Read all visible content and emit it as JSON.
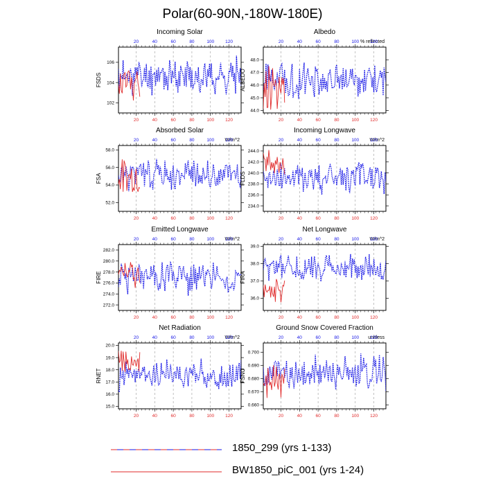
{
  "title": "Polar(60-90N,-180W-180E)",
  "colors": {
    "series_a": "#1515e6",
    "series_b": "#e02a2a",
    "top_axis": "#1515e6",
    "bottom_axis": "#e02a2a",
    "grid": "#999999"
  },
  "legend": {
    "items": [
      {
        "label": "1850_299 (yrs 1-133)",
        "style": "dashed"
      },
      {
        "label": "BW1850_piC_001 (yrs 1-24)",
        "style": "solid"
      }
    ]
  },
  "chart_data": [
    {
      "type": "line",
      "title": "Incoming Solar",
      "ylabel": "FSDS",
      "units": "",
      "ylim": [
        101,
        107.5
      ],
      "yticks": [
        102,
        104,
        106
      ],
      "ytick_labels": [
        "102",
        "104",
        "106"
      ],
      "x_top_ticks": [
        20,
        40,
        60,
        80,
        100,
        120
      ],
      "x_bottom_ticks": [
        20,
        40,
        60,
        80,
        100,
        120
      ],
      "xlim": [
        1,
        133
      ],
      "series": [
        {
          "name": "1850_299 (yrs 1-133)",
          "count": 133,
          "base": 104.6,
          "amp": 1.3,
          "seed": 11
        },
        {
          "name": "BW1850_piC_001 (yrs 1-24)",
          "count": 24,
          "base": 103.8,
          "amp": 1.2,
          "seed": 12
        }
      ]
    },
    {
      "type": "line",
      "title": "Albedo",
      "ylabel": "ALBEDO",
      "units": "% reflected",
      "ylim": [
        43.8,
        49
      ],
      "yticks": [
        44.0,
        45.0,
        46.0,
        47.0,
        48.0
      ],
      "ytick_labels": [
        "44.0",
        "45.0",
        "46.0",
        "47.0",
        "48.0"
      ],
      "x_top_ticks": [
        20,
        40,
        60,
        80,
        100,
        120
      ],
      "x_bottom_ticks": [
        20,
        40,
        60,
        80,
        100,
        120
      ],
      "xlim": [
        1,
        133
      ],
      "series": [
        {
          "name": "1850_299 (yrs 1-133)",
          "count": 133,
          "base": 46.4,
          "amp": 1.0,
          "seed": 21
        },
        {
          "name": "BW1850_piC_001 (yrs 1-24)",
          "count": 24,
          "base": 46.0,
          "amp": 1.4,
          "seed": 22
        }
      ]
    },
    {
      "type": "line",
      "title": "Absorbed Solar",
      "ylabel": "FSA",
      "units": "W/m^2",
      "ylim": [
        51,
        58.5
      ],
      "yticks": [
        52.0,
        54.0,
        56.0,
        58.0
      ],
      "ytick_labels": [
        "52.0",
        "54.0",
        "56.0",
        "58.0"
      ],
      "x_top_ticks": [
        20,
        40,
        60,
        80,
        100,
        120
      ],
      "x_bottom_ticks": [
        20,
        40,
        60,
        80,
        100,
        120
      ],
      "xlim": [
        1,
        133
      ],
      "series": [
        {
          "name": "1850_299 (yrs 1-133)",
          "count": 133,
          "base": 55.2,
          "amp": 1.3,
          "seed": 31
        },
        {
          "name": "BW1850_piC_001 (yrs 1-24)",
          "count": 24,
          "base": 55.0,
          "amp": 1.4,
          "seed": 32
        }
      ]
    },
    {
      "type": "line",
      "title": "Incoming Longwave",
      "ylabel": "FLDS",
      "units": "W/m^2",
      "ylim": [
        233,
        245
      ],
      "yticks": [
        234.0,
        236.0,
        238.0,
        240.0,
        242.0,
        244.0
      ],
      "ytick_labels": [
        "234.0",
        "236.0",
        "238.0",
        "240.0",
        "242.0",
        "244.0"
      ],
      "x_top_ticks": [
        20,
        40,
        60,
        80,
        100,
        120
      ],
      "x_bottom_ticks": [
        20,
        40,
        60,
        80,
        100,
        120
      ],
      "xlim": [
        1,
        133
      ],
      "series": [
        {
          "name": "1850_299 (yrs 1-133)",
          "count": 133,
          "base": 239.0,
          "amp": 2.2,
          "seed": 41
        },
        {
          "name": "BW1850_piC_001 (yrs 1-24)",
          "count": 24,
          "base": 241.5,
          "amp": 1.8,
          "seed": 42
        }
      ]
    },
    {
      "type": "line",
      "title": "Emitted Longwave",
      "ylabel": "FIRE",
      "units": "W/m^2",
      "ylim": [
        271,
        283
      ],
      "yticks": [
        272.0,
        274.0,
        276.0,
        278.0,
        280.0,
        282.0
      ],
      "ytick_labels": [
        "272.0",
        "274.0",
        "276.0",
        "278.0",
        "280.0",
        "282.0"
      ],
      "x_top_ticks": [
        20,
        40,
        60,
        80,
        100,
        120
      ],
      "x_bottom_ticks": [
        20,
        40,
        60,
        80,
        100,
        120
      ],
      "xlim": [
        1,
        133
      ],
      "series": [
        {
          "name": "1850_299 (yrs 1-133)",
          "count": 133,
          "base": 277.0,
          "amp": 2.2,
          "seed": 51
        },
        {
          "name": "BW1850_piC_001 (yrs 1-24)",
          "count": 24,
          "base": 277.8,
          "amp": 1.8,
          "seed": 52
        }
      ]
    },
    {
      "type": "line",
      "title": "Net Longwave",
      "ylabel": "FIRA",
      "units": "W/m^2",
      "ylim": [
        35.3,
        39.1
      ],
      "yticks": [
        36.0,
        37.0,
        38.0,
        39.0
      ],
      "ytick_labels": [
        "36.0",
        "37.0",
        "38.0",
        "39.0"
      ],
      "x_top_ticks": [
        20,
        40,
        60,
        80,
        100,
        120
      ],
      "x_bottom_ticks": [
        20,
        40,
        60,
        80,
        100,
        120
      ],
      "xlim": [
        1,
        133
      ],
      "series": [
        {
          "name": "1850_299 (yrs 1-133)",
          "count": 133,
          "base": 37.7,
          "amp": 0.6,
          "seed": 61
        },
        {
          "name": "BW1850_piC_001 (yrs 1-24)",
          "count": 24,
          "base": 36.5,
          "amp": 0.5,
          "seed": 62
        }
      ]
    },
    {
      "type": "line",
      "title": "Net Radiation",
      "ylabel": "RNET",
      "units": "W/m^2",
      "ylim": [
        14.8,
        20.2
      ],
      "yticks": [
        15.0,
        16.0,
        17.0,
        18.0,
        19.0,
        20.0
      ],
      "ytick_labels": [
        "15.0",
        "16.0",
        "17.0",
        "18.0",
        "19.0",
        "20.0"
      ],
      "x_top_ticks": [
        20,
        40,
        60,
        80,
        100,
        120
      ],
      "x_bottom_ticks": [
        20,
        40,
        60,
        80,
        100,
        120
      ],
      "xlim": [
        1,
        133
      ],
      "series": [
        {
          "name": "1850_299 (yrs 1-133)",
          "count": 133,
          "base": 17.6,
          "amp": 0.9,
          "seed": 71
        },
        {
          "name": "BW1850_piC_001 (yrs 1-24)",
          "count": 24,
          "base": 18.6,
          "amp": 0.8,
          "seed": 72
        }
      ]
    },
    {
      "type": "line",
      "title": "Ground Snow Covered Fraction",
      "ylabel": "FSNO",
      "units": "unitless",
      "ylim": [
        0.657,
        0.707
      ],
      "yticks": [
        0.66,
        0.67,
        0.68,
        0.69,
        0.7
      ],
      "ytick_labels": [
        "0.660",
        "0.670",
        "0.680",
        "0.690",
        "0.700"
      ],
      "x_top_ticks": [
        20,
        40,
        60,
        80,
        100,
        120
      ],
      "x_bottom_ticks": [
        20,
        40,
        60,
        80,
        100,
        120
      ],
      "xlim": [
        1,
        133
      ],
      "series": [
        {
          "name": "1850_299 (yrs 1-133)",
          "count": 133,
          "base": 0.684,
          "amp": 0.01,
          "seed": 81
        },
        {
          "name": "BW1850_piC_001 (yrs 1-24)",
          "count": 24,
          "base": 0.678,
          "amp": 0.009,
          "seed": 82
        }
      ]
    }
  ]
}
